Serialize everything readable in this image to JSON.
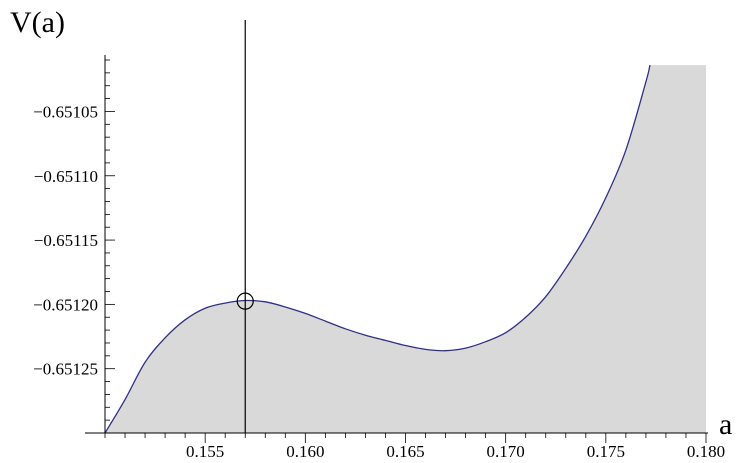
{
  "chart_data": {
    "type": "area",
    "title": "",
    "xlabel": "a",
    "ylabel": "V(a)",
    "xlim": [
      0.15,
      0.18
    ],
    "ylim": [
      -0.6513,
      -0.65101
    ],
    "grid": false,
    "x_ticks": [
      0.155,
      0.16,
      0.165,
      0.17,
      0.175,
      0.18
    ],
    "x_tick_labels": [
      "0.155",
      "0.160",
      "0.165",
      "0.170",
      "0.175",
      "0.180"
    ],
    "y_ticks": [
      -0.65105,
      -0.6511,
      -0.65115,
      -0.6512,
      -0.65125
    ],
    "y_tick_labels": [
      "−0.65105",
      "−0.65110",
      "−0.65115",
      "−0.65120",
      "−0.65125"
    ],
    "series": [
      {
        "x": [
          0.15,
          0.151,
          0.152,
          0.153,
          0.154,
          0.155,
          0.156,
          0.157,
          0.158,
          0.159,
          0.16,
          0.161,
          0.162,
          0.163,
          0.164,
          0.165,
          0.166,
          0.167,
          0.168,
          0.169,
          0.17,
          0.171,
          0.172,
          0.173,
          0.174,
          0.175,
          0.176,
          0.177,
          0.1772
        ],
        "y": [
          -0.6513,
          -0.651274,
          -0.651245,
          -0.651226,
          -0.651212,
          -0.651203,
          -0.651199,
          -0.651197,
          -0.651198,
          -0.651202,
          -0.651207,
          -0.651213,
          -0.651219,
          -0.651224,
          -0.651228,
          -0.651232,
          -0.651235,
          -0.651236,
          -0.651234,
          -0.651229,
          -0.651222,
          -0.65121,
          -0.651194,
          -0.651172,
          -0.651147,
          -0.651117,
          -0.65108,
          -0.651027,
          -0.651014
        ],
        "fill": "below",
        "line_color": "#2f2f8f",
        "fill_color": "#d9d9d9",
        "fill_extends_to_x": 0.18
      }
    ],
    "vertical_line": {
      "x": 0.157,
      "color": "#000000"
    },
    "marker": {
      "x": 0.157,
      "y": -0.6511975,
      "shape": "open-circle"
    }
  }
}
